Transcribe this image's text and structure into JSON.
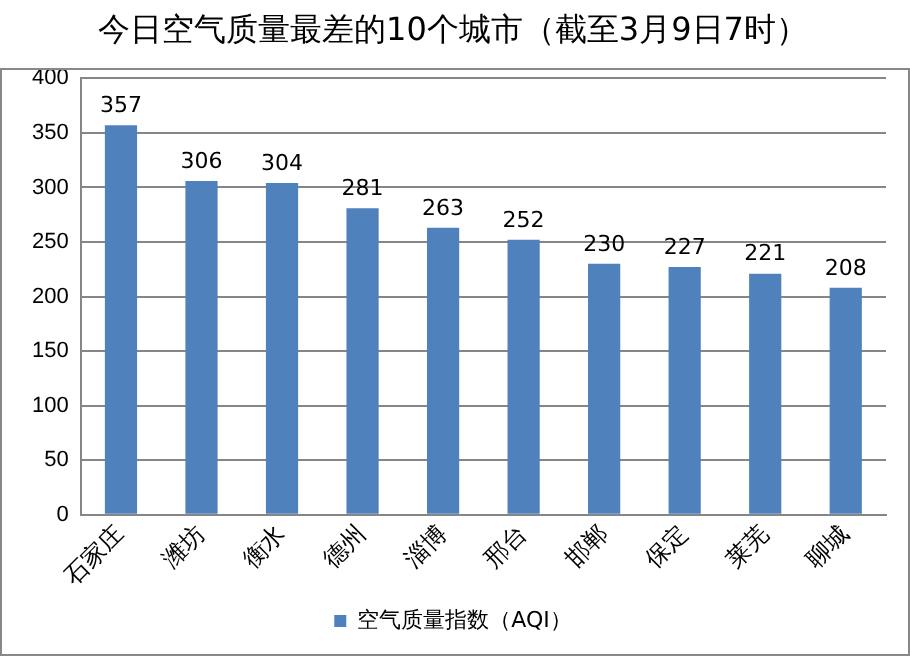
{
  "chart_data": {
    "type": "bar",
    "title": "今日空气质量最差的10个城市（截至3月9日7时）",
    "categories": [
      "石家庄",
      "潍坊",
      "衡水",
      "德州",
      "淄博",
      "邢台",
      "邯郸",
      "保定",
      "莱芜",
      "聊城"
    ],
    "series": [
      {
        "name": "空气质量指数（AQI）",
        "color": "#4f81bd",
        "values": [
          357,
          306,
          304,
          281,
          263,
          252,
          230,
          227,
          221,
          208
        ]
      }
    ],
    "ylim": [
      0,
      400
    ],
    "yticks": [
      0,
      50,
      100,
      150,
      200,
      250,
      300,
      350,
      400
    ],
    "grid": "y",
    "legend": "bottom",
    "data_labels": true
  }
}
